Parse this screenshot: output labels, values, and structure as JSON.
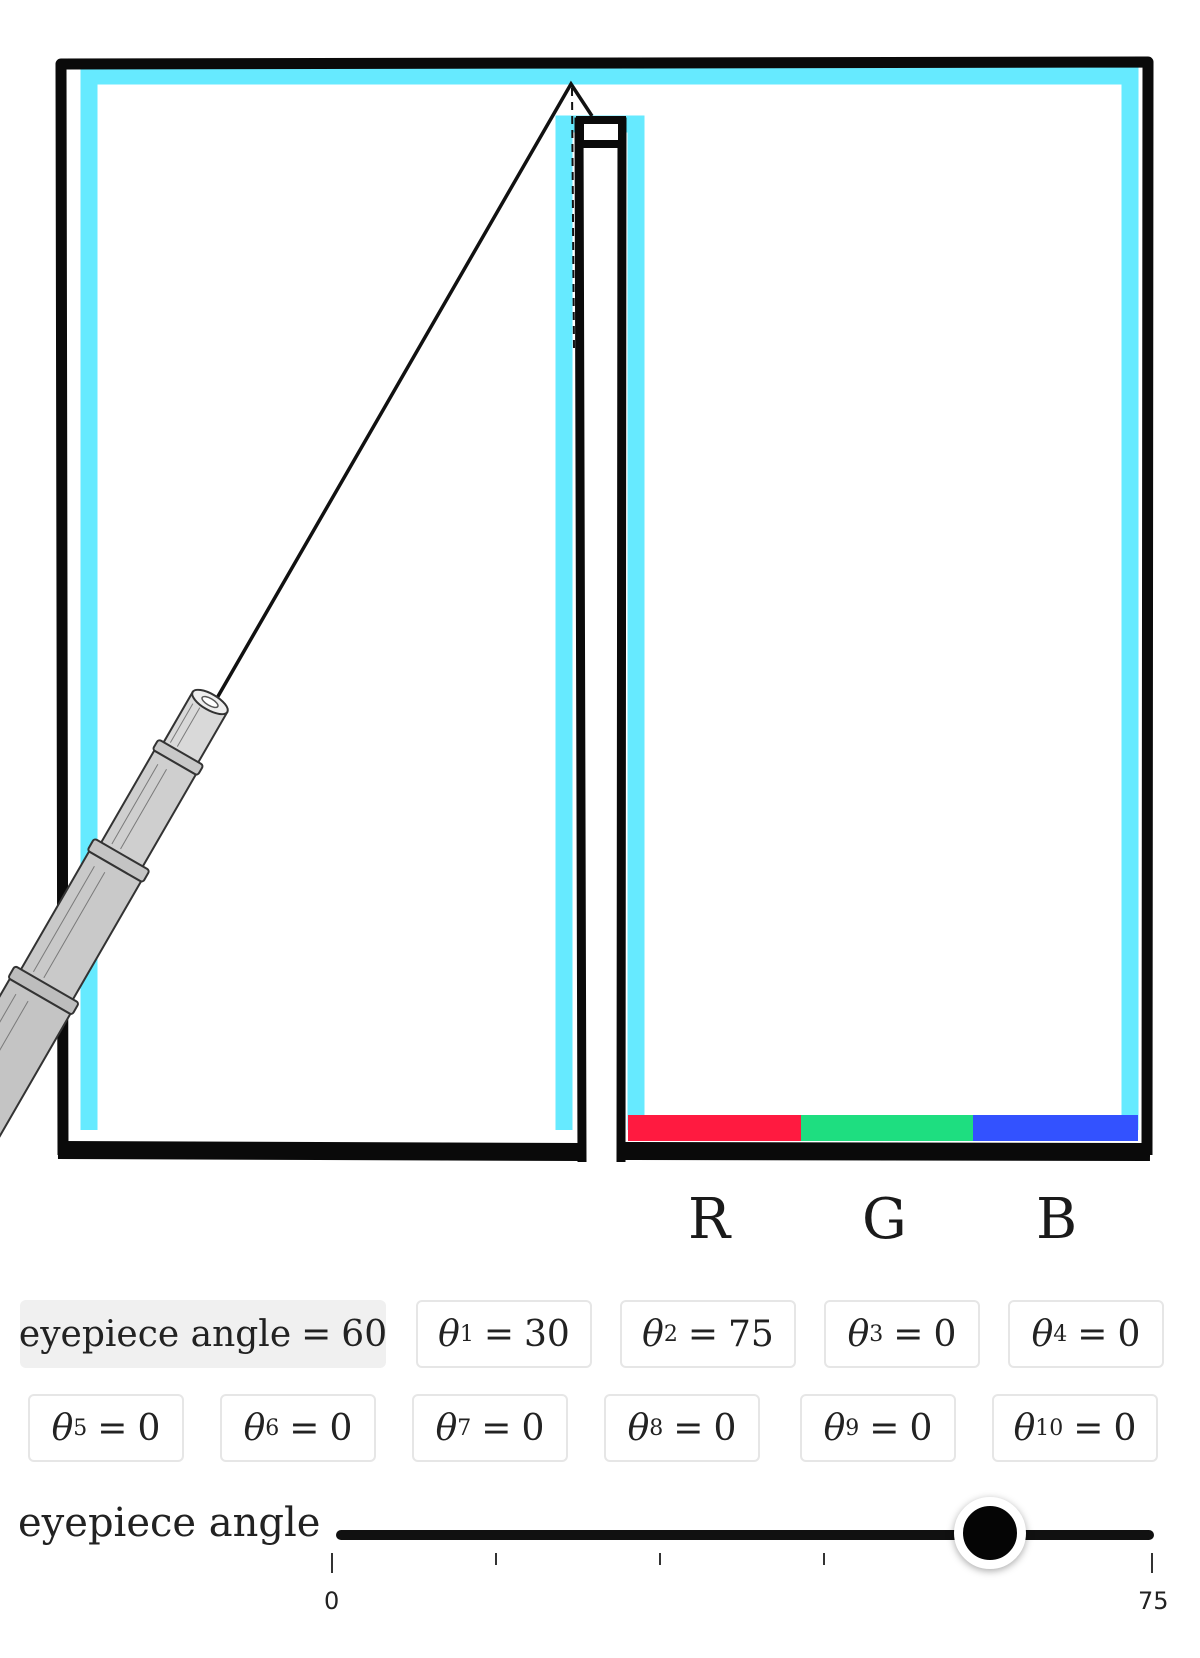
{
  "channels": {
    "r": "R",
    "g": "G",
    "b": "B"
  },
  "colors": {
    "water": "#66eaff",
    "frame": "#0a0a0a",
    "red": "#ff1a40",
    "green": "#1ede80",
    "blue": "#3352ff",
    "beam": "#111111"
  },
  "icons": {
    "eyepiece": "telescope-eyepiece-icon"
  },
  "parameters": {
    "eyepiece": {
      "name": "eyepiece angle",
      "value": "60"
    },
    "thetas": [
      {
        "sub": "1",
        "value": "30"
      },
      {
        "sub": "2",
        "value": "75"
      },
      {
        "sub": "3",
        "value": "0"
      },
      {
        "sub": "4",
        "value": "0"
      },
      {
        "sub": "5",
        "value": "0"
      },
      {
        "sub": "6",
        "value": "0"
      },
      {
        "sub": "7",
        "value": "0"
      },
      {
        "sub": "8",
        "value": "0"
      },
      {
        "sub": "9",
        "value": "0"
      },
      {
        "sub": "10",
        "value": "0"
      }
    ]
  },
  "theta_symbol": "θ",
  "equals": "=",
  "slider": {
    "label": "eyepiece angle",
    "value": 60,
    "min": 0,
    "max": 75,
    "min_label": "0",
    "max_label": "75"
  }
}
